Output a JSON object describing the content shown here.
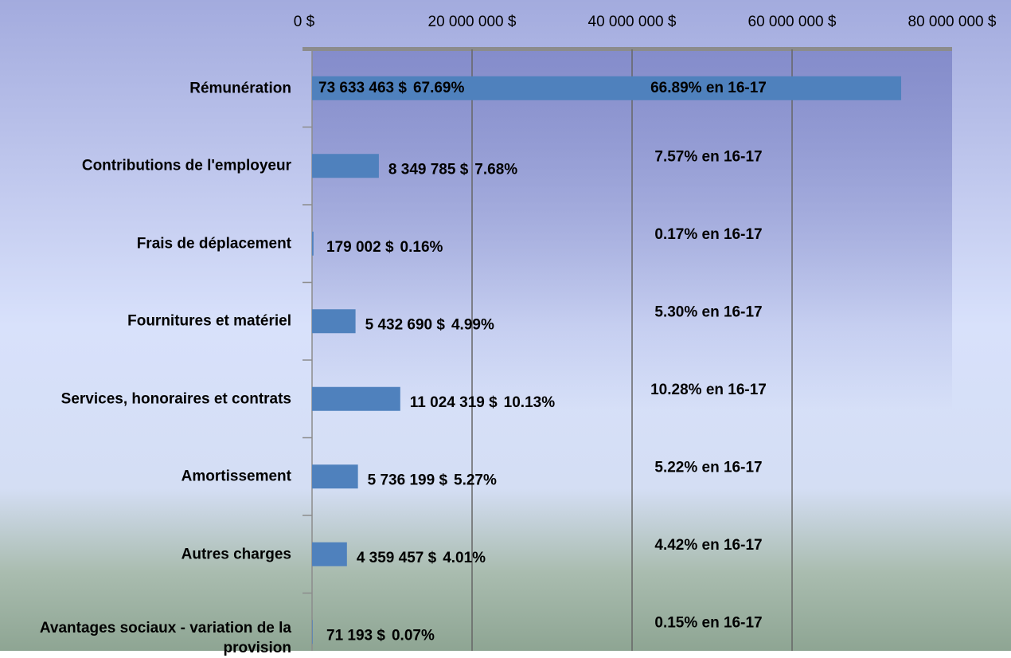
{
  "chart_data": {
    "type": "bar",
    "orientation": "horizontal",
    "categories": [
      "Rémunération",
      "Contributions de l'employeur",
      "Frais de déplacement",
      "Fournitures et matériel",
      "Services, honoraires et contrats",
      "Amortissement",
      "Autres charges",
      "Avantages sociaux - variation de la provision"
    ],
    "values": [
      73633463,
      8349785,
      179002,
      5432690,
      11024319,
      5736199,
      4359457,
      71193
    ],
    "value_labels": [
      "73 633 463 $",
      "8 349 785 $",
      "179 002 $",
      "5 432 690 $",
      "11 024 319 $",
      "5 736 199 $",
      "4 359 457 $",
      "71 193 $"
    ],
    "percent_labels": [
      "67.69%",
      "7.68%",
      "0.16%",
      "4.99%",
      "10.13%",
      "5.27%",
      "4.01%",
      "0.07%"
    ],
    "annotations": [
      "66.89% en 16-17",
      "7.57% en 16-17",
      "0.17% en 16-17",
      "5.30% en 16-17",
      "10.28% en 16-17",
      "5.22% en 16-17",
      "4.42% en 16-17",
      "0.15%  en 16-17"
    ],
    "color": "#4f81bd",
    "xlim": [
      0,
      80000000
    ],
    "xticks": [
      {
        "value": 0,
        "label": "0 $"
      },
      {
        "value": 20000000,
        "label": "20 000 000 $"
      },
      {
        "value": 40000000,
        "label": "40 000 000 $"
      },
      {
        "value": 60000000,
        "label": "60 000 000 $"
      },
      {
        "value": 80000000,
        "label": "80 000 000 $"
      }
    ],
    "grid": true
  }
}
